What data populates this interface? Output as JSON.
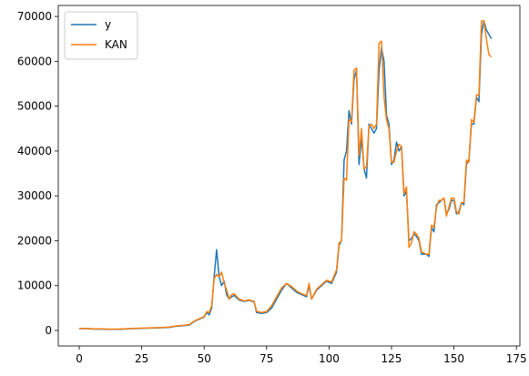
{
  "chart_data": {
    "type": "line",
    "title": "",
    "xlabel": "",
    "ylabel": "",
    "xlim": [
      -8.4,
      176.4
    ],
    "ylim": [
      -3450,
      72450
    ],
    "x_ticks": [
      0,
      25,
      50,
      75,
      100,
      125,
      150,
      175
    ],
    "y_ticks": [
      0,
      10000,
      20000,
      30000,
      40000,
      50000,
      60000,
      70000
    ],
    "x_tick_labels": [
      "0",
      "25",
      "50",
      "75",
      "100",
      "125",
      "150",
      "175"
    ],
    "y_tick_labels": [
      "0",
      "10000",
      "20000",
      "30000",
      "40000",
      "50000",
      "60000",
      "70000"
    ],
    "legend_position": "upper-left",
    "grid": false,
    "series": [
      {
        "name": "y",
        "color": "#1f77b4",
        "points": [
          [
            0,
            400
          ],
          [
            3,
            400
          ],
          [
            6,
            300
          ],
          [
            9,
            300
          ],
          [
            12,
            250
          ],
          [
            15,
            250
          ],
          [
            18,
            300
          ],
          [
            21,
            400
          ],
          [
            24,
            450
          ],
          [
            27,
            500
          ],
          [
            30,
            550
          ],
          [
            33,
            600
          ],
          [
            36,
            700
          ],
          [
            38,
            900
          ],
          [
            40,
            1000
          ],
          [
            42,
            1100
          ],
          [
            44,
            1200
          ],
          [
            46,
            2000
          ],
          [
            48,
            2500
          ],
          [
            50,
            3000
          ],
          [
            51,
            4000
          ],
          [
            52,
            3500
          ],
          [
            53,
            5000
          ],
          [
            54,
            12000
          ],
          [
            55,
            18000
          ],
          [
            56,
            12000
          ],
          [
            57,
            10000
          ],
          [
            58,
            11000
          ],
          [
            59,
            8000
          ],
          [
            60,
            7000
          ],
          [
            61,
            7500
          ],
          [
            62,
            7800
          ],
          [
            64,
            6800
          ],
          [
            66,
            6500
          ],
          [
            68,
            6700
          ],
          [
            70,
            6400
          ],
          [
            71,
            4000
          ],
          [
            73,
            3800
          ],
          [
            75,
            4000
          ],
          [
            77,
            5000
          ],
          [
            79,
            7000
          ],
          [
            81,
            9000
          ],
          [
            83,
            10500
          ],
          [
            85,
            9500
          ],
          [
            87,
            8500
          ],
          [
            89,
            8000
          ],
          [
            91,
            7500
          ],
          [
            92,
            10000
          ],
          [
            93,
            7000
          ],
          [
            95,
            9000
          ],
          [
            97,
            10000
          ],
          [
            99,
            11000
          ],
          [
            101,
            10500
          ],
          [
            103,
            13000
          ],
          [
            104,
            19000
          ],
          [
            105,
            20000
          ],
          [
            106,
            38000
          ],
          [
            107,
            40000
          ],
          [
            108,
            49000
          ],
          [
            109,
            46000
          ],
          [
            110,
            56000
          ],
          [
            111,
            58000
          ],
          [
            112,
            37000
          ],
          [
            113,
            43000
          ],
          [
            114,
            36000
          ],
          [
            115,
            34000
          ],
          [
            116,
            46000
          ],
          [
            117,
            45000
          ],
          [
            118,
            44000
          ],
          [
            119,
            45000
          ],
          [
            120,
            58000
          ],
          [
            121,
            63000
          ],
          [
            122,
            60000
          ],
          [
            123,
            48000
          ],
          [
            124,
            46000
          ],
          [
            125,
            37000
          ],
          [
            126,
            38000
          ],
          [
            127,
            42000
          ],
          [
            128,
            40000
          ],
          [
            129,
            41000
          ],
          [
            130,
            30000
          ],
          [
            131,
            31000
          ],
          [
            132,
            20000
          ],
          [
            133,
            20500
          ],
          [
            134,
            21500
          ],
          [
            135,
            21000
          ],
          [
            136,
            20000
          ],
          [
            137,
            17000
          ],
          [
            139,
            17000
          ],
          [
            140,
            16500
          ],
          [
            141,
            23000
          ],
          [
            142,
            22000
          ],
          [
            143,
            28000
          ],
          [
            144,
            28500
          ],
          [
            145,
            29000
          ],
          [
            146,
            29500
          ],
          [
            147,
            26000
          ],
          [
            148,
            27000
          ],
          [
            149,
            29000
          ],
          [
            150,
            29000
          ],
          [
            151,
            26000
          ],
          [
            152,
            26500
          ],
          [
            153,
            28500
          ],
          [
            154,
            28000
          ],
          [
            155,
            37000
          ],
          [
            156,
            38000
          ],
          [
            157,
            46000
          ],
          [
            158,
            46000
          ],
          [
            159,
            52000
          ],
          [
            160,
            51000
          ],
          [
            161,
            66000
          ],
          [
            162,
            69000
          ],
          [
            163,
            67000
          ],
          [
            164,
            66000
          ],
          [
            165,
            65000
          ]
        ]
      },
      {
        "name": "KAN",
        "color": "#ff7f0e",
        "points": [
          [
            0,
            450
          ],
          [
            3,
            450
          ],
          [
            6,
            350
          ],
          [
            9,
            350
          ],
          [
            12,
            300
          ],
          [
            15,
            300
          ],
          [
            18,
            350
          ],
          [
            21,
            450
          ],
          [
            24,
            500
          ],
          [
            27,
            550
          ],
          [
            30,
            600
          ],
          [
            33,
            650
          ],
          [
            36,
            750
          ],
          [
            38,
            950
          ],
          [
            40,
            1050
          ],
          [
            42,
            1150
          ],
          [
            44,
            1300
          ],
          [
            46,
            2100
          ],
          [
            48,
            2600
          ],
          [
            50,
            3100
          ],
          [
            51,
            4200
          ],
          [
            52,
            4000
          ],
          [
            53,
            5500
          ],
          [
            54,
            11500
          ],
          [
            55,
            12500
          ],
          [
            56,
            12000
          ],
          [
            57,
            13000
          ],
          [
            58,
            10500
          ],
          [
            59,
            9000
          ],
          [
            60,
            7000
          ],
          [
            61,
            8000
          ],
          [
            62,
            8200
          ],
          [
            64,
            7000
          ],
          [
            66,
            6600
          ],
          [
            68,
            6800
          ],
          [
            70,
            6500
          ],
          [
            71,
            4300
          ],
          [
            73,
            4000
          ],
          [
            75,
            4200
          ],
          [
            77,
            5500
          ],
          [
            79,
            7500
          ],
          [
            81,
            9500
          ],
          [
            83,
            10500
          ],
          [
            85,
            9800
          ],
          [
            87,
            8800
          ],
          [
            89,
            8200
          ],
          [
            91,
            7800
          ],
          [
            92,
            10500
          ],
          [
            93,
            7000
          ],
          [
            95,
            9200
          ],
          [
            97,
            10200
          ],
          [
            99,
            11200
          ],
          [
            101,
            10800
          ],
          [
            103,
            13500
          ],
          [
            104,
            19500
          ],
          [
            105,
            20000
          ],
          [
            106,
            34000
          ],
          [
            107,
            33500
          ],
          [
            108,
            47000
          ],
          [
            109,
            46500
          ],
          [
            110,
            58000
          ],
          [
            111,
            58500
          ],
          [
            112,
            39000
          ],
          [
            113,
            45000
          ],
          [
            114,
            36000
          ],
          [
            115,
            36500
          ],
          [
            116,
            45500
          ],
          [
            117,
            46000
          ],
          [
            118,
            45000
          ],
          [
            119,
            46000
          ],
          [
            120,
            64000
          ],
          [
            121,
            64500
          ],
          [
            122,
            52000
          ],
          [
            123,
            47000
          ],
          [
            124,
            45000
          ],
          [
            125,
            37500
          ],
          [
            126,
            37500
          ],
          [
            127,
            40000
          ],
          [
            128,
            41500
          ],
          [
            129,
            41000
          ],
          [
            130,
            30500
          ],
          [
            131,
            32000
          ],
          [
            132,
            18500
          ],
          [
            133,
            19500
          ],
          [
            134,
            22000
          ],
          [
            135,
            21500
          ],
          [
            136,
            20500
          ],
          [
            137,
            17500
          ],
          [
            139,
            17000
          ],
          [
            140,
            17000
          ],
          [
            141,
            23500
          ],
          [
            142,
            23000
          ],
          [
            143,
            27500
          ],
          [
            144,
            29000
          ],
          [
            145,
            29000
          ],
          [
            146,
            29500
          ],
          [
            147,
            25500
          ],
          [
            148,
            27500
          ],
          [
            149,
            29500
          ],
          [
            150,
            29500
          ],
          [
            151,
            26500
          ],
          [
            152,
            26000
          ],
          [
            153,
            28500
          ],
          [
            154,
            28500
          ],
          [
            155,
            38000
          ],
          [
            156,
            37500
          ],
          [
            157,
            47000
          ],
          [
            158,
            46500
          ],
          [
            159,
            52500
          ],
          [
            160,
            52500
          ],
          [
            161,
            69000
          ],
          [
            162,
            69000
          ],
          [
            163,
            65000
          ],
          [
            164,
            61500
          ],
          [
            165,
            61000
          ]
        ]
      }
    ]
  }
}
